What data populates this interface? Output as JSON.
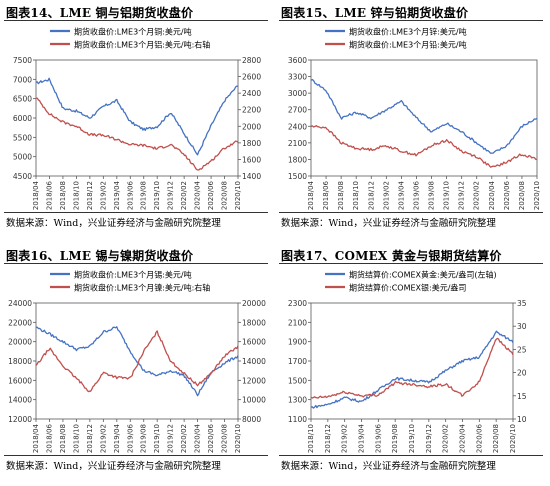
{
  "colors": {
    "blue": "#4472c4",
    "red": "#c0504d",
    "axis": "#595959",
    "grid": "#e6e6e6"
  },
  "panels": [
    {
      "title": "图表14、LME 铜与铝期货收盘价",
      "source": "数据来源：Wind，兴业证券经济与金融研究院整理",
      "chart_data": {
        "type": "line",
        "x": [
          "2018/04",
          "2018/06",
          "2018/08",
          "2018/10",
          "2018/12",
          "2019/02",
          "2019/04",
          "2019/06",
          "2019/08",
          "2019/10",
          "2019/12",
          "2020/02",
          "2020/04",
          "2020/06",
          "2020/08",
          "2020/10"
        ],
        "series": [
          {
            "name": "期货收盘价:LME3个月铜:美元/吨",
            "axis": "left",
            "color": "#4472c4",
            "values": [
              6900,
              7000,
              6250,
              6180,
              6000,
              6300,
              6450,
              5900,
              5700,
              5780,
              6150,
              5600,
              5050,
              5800,
              6450,
              6850
            ]
          },
          {
            "name": "期货收盘价:LME3个月铝:美元/吨:右轴",
            "axis": "right",
            "color": "#c0504d",
            "values": [
              2350,
              2150,
              2050,
              2000,
              1900,
              1890,
              1840,
              1780,
              1770,
              1730,
              1780,
              1660,
              1470,
              1580,
              1740,
              1820
            ]
          }
        ],
        "yleft": {
          "min": 4500,
          "max": 7500,
          "ticks": [
            4500,
            5000,
            5500,
            6000,
            6500,
            7000,
            7500
          ]
        },
        "yright": {
          "min": 1400,
          "max": 2800,
          "ticks": [
            1400,
            1600,
            1800,
            2000,
            2200,
            2400,
            2600,
            2800
          ]
        },
        "legend": "top"
      }
    },
    {
      "title": "图表15、LME 锌与铅期货收盘价",
      "source": "数据来源：Wind，兴业证券经济与金融研究院整理",
      "chart_data": {
        "type": "line",
        "x": [
          "2018/04",
          "2018/06",
          "2018/08",
          "2018/10",
          "2018/12",
          "2019/02",
          "2019/04",
          "2019/06",
          "2019/08",
          "2019/10",
          "2019/12",
          "2020/02",
          "2020/04",
          "2020/06",
          "2020/08",
          "2020/10"
        ],
        "series": [
          {
            "name": "期货收盘价:LME3个月锌:美元/吨",
            "axis": "left",
            "color": "#4472c4",
            "values": [
              3250,
              3050,
              2550,
              2650,
              2550,
              2700,
              2850,
              2550,
              2300,
              2450,
              2300,
              2100,
              1900,
              2050,
              2400,
              2550
            ]
          },
          {
            "name": "期货收盘价:LME3个月铅:美元/吨",
            "axis": "left",
            "color": "#c0504d",
            "values": [
              2400,
              2380,
              2100,
              2000,
              1980,
              2050,
              1950,
              1880,
              2050,
              2150,
              1950,
              1850,
              1650,
              1750,
              1900,
              1800
            ]
          }
        ],
        "yleft": {
          "min": 1500,
          "max": 3600,
          "ticks": [
            1500,
            1800,
            2100,
            2400,
            2700,
            3000,
            3300,
            3600
          ]
        },
        "legend": "top"
      }
    },
    {
      "title": "图表16、LME 锡与镍期货收盘价",
      "source": "数据来源：Wind，兴业证券经济与金融研究院整理",
      "chart_data": {
        "type": "line",
        "x": [
          "2018/04",
          "2018/06",
          "2018/08",
          "2018/10",
          "2018/12",
          "2019/02",
          "2019/04",
          "2019/06",
          "2019/08",
          "2019/10",
          "2019/12",
          "2020/02",
          "2020/04",
          "2020/06",
          "2020/08",
          "2020/10"
        ],
        "series": [
          {
            "name": "期货收盘价:LME3个月锡:美元/吨",
            "axis": "left",
            "color": "#4472c4",
            "values": [
              21500,
              20800,
              20000,
              19200,
              19500,
              21000,
              21500,
              19000,
              17000,
              16500,
              17000,
              16500,
              14500,
              16800,
              17800,
              18500
            ]
          },
          {
            "name": "期货收盘价:LME3个月镍:美元/吨:右轴",
            "axis": "right",
            "color": "#c0504d",
            "values": [
              13500,
              15300,
              13500,
              12200,
              10800,
              12800,
              12300,
              12200,
              15000,
              17000,
              14000,
              12700,
              11500,
              12700,
              14500,
              15500
            ]
          }
        ],
        "yleft": {
          "min": 12000,
          "max": 24000,
          "ticks": [
            12000,
            14000,
            16000,
            18000,
            20000,
            22000,
            24000
          ]
        },
        "yright": {
          "min": 8000,
          "max": 20000,
          "ticks": [
            8000,
            10000,
            12000,
            14000,
            16000,
            18000,
            20000
          ]
        },
        "legend": "top"
      }
    },
    {
      "title": "图表17、COMEX 黄金与银期货结算价",
      "source": "数据来源：Wind，兴业证券经济与金融研究院整理",
      "chart_data": {
        "type": "line",
        "x": [
          "2018/10",
          "2018/12",
          "2019/02",
          "2019/04",
          "2019/06",
          "2019/08",
          "2019/10",
          "2019/12",
          "2020/02",
          "2020/04",
          "2020/06",
          "2020/08",
          "2020/10"
        ],
        "series": [
          {
            "name": "期货结算价:COMEX黄金:美元/盎司(左轴)",
            "axis": "left",
            "color": "#4472c4",
            "values": [
              1220,
              1250,
              1320,
              1280,
              1400,
              1520,
              1500,
              1480,
              1600,
              1700,
              1740,
              2000,
              1900
            ]
          },
          {
            "name": "期货结算价:COMEX银:美元/盎司",
            "axis": "right",
            "color": "#c0504d",
            "values": [
              14.5,
              14.8,
              15.8,
              15.0,
              15.2,
              17.8,
              17.5,
              17.0,
              17.5,
              15.0,
              18.0,
              27.5,
              24.0
            ]
          }
        ],
        "yleft": {
          "min": 1100,
          "max": 2300,
          "ticks": [
            1100,
            1300,
            1500,
            1700,
            1900,
            2100,
            2300
          ]
        },
        "yright": {
          "min": 10,
          "max": 35,
          "ticks": [
            10,
            15,
            20,
            25,
            30,
            35
          ]
        },
        "legend": "top"
      }
    }
  ]
}
